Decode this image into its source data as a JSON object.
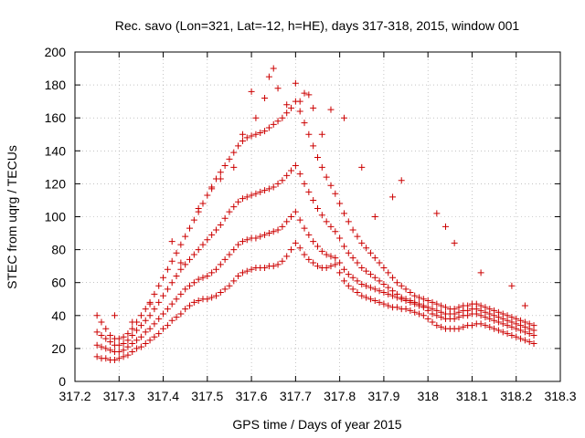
{
  "chart_data": {
    "type": "scatter",
    "title": "Rec. savo (Lon=321, Lat=-12, h=HE), days 317-318, 2015, window 001",
    "xlabel": "GPS time / Days of year 2015",
    "ylabel": "STEC from uqrg / TECUs",
    "xlim": [
      317.2,
      318.3
    ],
    "ylim": [
      0,
      200
    ],
    "xticks": [
      "317.2",
      "317.3",
      "317.4",
      "317.5",
      "317.6",
      "317.7",
      "317.8",
      "317.9",
      "318",
      "318.1",
      "318.2",
      "318.3"
    ],
    "yticks": [
      "0",
      "20",
      "40",
      "60",
      "80",
      "100",
      "120",
      "140",
      "160",
      "180",
      "200"
    ],
    "grid": true,
    "marker": "plus",
    "color": "#cc0000",
    "series": [
      {
        "x": [
          317.25,
          317.26,
          317.27,
          317.28,
          317.29,
          317.3,
          317.31,
          317.32,
          317.33,
          317.34,
          317.35,
          317.36,
          317.37,
          317.38,
          317.39,
          317.4,
          317.41,
          317.42,
          317.43,
          317.44,
          317.45,
          317.46,
          317.47,
          317.48,
          317.49,
          317.5,
          317.51,
          317.52,
          317.53,
          317.54,
          317.55,
          317.56,
          317.57,
          317.58,
          317.59,
          317.6,
          317.61,
          317.62,
          317.63,
          317.64,
          317.65,
          317.66,
          317.67,
          317.68,
          317.69,
          317.7,
          317.71,
          317.72,
          317.73,
          317.74,
          317.75,
          317.76,
          317.77,
          317.78,
          317.79,
          317.8,
          317.81,
          317.82,
          317.83,
          317.84,
          317.85,
          317.86,
          317.87,
          317.88,
          317.89,
          317.9,
          317.91,
          317.92,
          317.93,
          317.94,
          317.95,
          317.96,
          317.97,
          317.98,
          317.99,
          318.0,
          318.01,
          318.02,
          318.03,
          318.04,
          318.05,
          318.06,
          318.07,
          318.08,
          318.09,
          318.1,
          318.11,
          318.12,
          318.13,
          318.14,
          318.15,
          318.16,
          318.17,
          318.18,
          318.19,
          318.2,
          318.21,
          318.22,
          318.23,
          318.24
        ],
        "y": [
          15,
          14,
          14,
          13,
          13,
          14,
          15,
          16,
          18,
          20,
          21,
          23,
          25,
          27,
          29,
          32,
          34,
          37,
          39,
          41,
          44,
          46,
          48,
          49,
          50,
          50,
          51,
          52,
          54,
          56,
          58,
          61,
          64,
          66,
          67,
          68,
          69,
          69,
          69,
          70,
          70,
          71,
          73,
          76,
          80,
          84,
          81,
          77,
          74,
          72,
          70,
          69,
          69,
          70,
          71,
          66,
          61,
          58,
          56,
          54,
          52,
          51,
          50,
          49,
          48,
          47,
          46,
          45,
          45,
          44,
          44,
          43,
          42,
          41,
          40,
          38,
          36,
          34,
          33,
          32,
          32,
          32,
          32,
          33,
          34,
          34,
          35,
          35,
          34,
          33,
          32,
          31,
          30,
          29,
          28,
          27,
          26,
          25,
          24,
          23
        ]
      },
      {
        "x": [
          317.25,
          317.26,
          317.27,
          317.28,
          317.29,
          317.3,
          317.31,
          317.32,
          317.33,
          317.34,
          317.35,
          317.36,
          317.37,
          317.38,
          317.39,
          317.4,
          317.41,
          317.42,
          317.43,
          317.44,
          317.45,
          317.46,
          317.47,
          317.48,
          317.49,
          317.5,
          317.51,
          317.52,
          317.53,
          317.54,
          317.55,
          317.56,
          317.57,
          317.58,
          317.59,
          317.6,
          317.61,
          317.62,
          317.63,
          317.64,
          317.65,
          317.66,
          317.67,
          317.68,
          317.69,
          317.7,
          317.71,
          317.72,
          317.73,
          317.74,
          317.75,
          317.76,
          317.77,
          317.78,
          317.79,
          317.8,
          317.81,
          317.82,
          317.83,
          317.84,
          317.85,
          317.86,
          317.87,
          317.88,
          317.89,
          317.9,
          317.91,
          317.92,
          317.93,
          317.94,
          317.95,
          317.96,
          317.97,
          317.98,
          317.99,
          318.0,
          318.01,
          318.02,
          318.03,
          318.04,
          318.05,
          318.06,
          318.07,
          318.08,
          318.09,
          318.1,
          318.11,
          318.12,
          318.13,
          318.14,
          318.15,
          318.16,
          318.17,
          318.18,
          318.19,
          318.2,
          318.21,
          318.22,
          318.23,
          318.24
        ],
        "y": [
          22,
          21,
          20,
          19,
          18,
          18,
          19,
          21,
          23,
          25,
          27,
          30,
          32,
          35,
          38,
          41,
          44,
          47,
          50,
          53,
          56,
          58,
          60,
          62,
          63,
          64,
          66,
          68,
          71,
          74,
          77,
          80,
          83,
          85,
          86,
          87,
          87,
          88,
          89,
          90,
          91,
          92,
          94,
          97,
          100,
          103,
          98,
          93,
          89,
          85,
          82,
          79,
          77,
          76,
          75,
          72,
          68,
          65,
          63,
          61,
          59,
          58,
          57,
          56,
          55,
          54,
          53,
          52,
          51,
          50,
          49,
          48,
          47,
          46,
          45,
          43,
          41,
          40,
          39,
          38,
          38,
          38,
          39,
          40,
          40,
          41,
          41,
          40,
          39,
          38,
          37,
          36,
          35,
          34,
          33,
          32,
          31,
          30,
          29,
          28
        ]
      },
      {
        "x": [
          317.25,
          317.26,
          317.27,
          317.28,
          317.29,
          317.3,
          317.31,
          317.32,
          317.33,
          317.34,
          317.35,
          317.36,
          317.37,
          317.38,
          317.39,
          317.4,
          317.41,
          317.42,
          317.43,
          317.44,
          317.45,
          317.46,
          317.47,
          317.48,
          317.49,
          317.5,
          317.51,
          317.52,
          317.53,
          317.54,
          317.55,
          317.56,
          317.57,
          317.58,
          317.59,
          317.6,
          317.61,
          317.62,
          317.63,
          317.64,
          317.65,
          317.66,
          317.67,
          317.68,
          317.69,
          317.7,
          317.71,
          317.72,
          317.73,
          317.74,
          317.75,
          317.76,
          317.77,
          317.78,
          317.79,
          317.8,
          317.81,
          317.82,
          317.83,
          317.84,
          317.85,
          317.86,
          317.87,
          317.88,
          317.89,
          317.9,
          317.91,
          317.92,
          317.93,
          317.94,
          317.95,
          317.96,
          317.97,
          317.98,
          317.99,
          318.0,
          318.01,
          318.02,
          318.03,
          318.04,
          318.05,
          318.06,
          318.07,
          318.08,
          318.09,
          318.1,
          318.11,
          318.12,
          318.13,
          318.14,
          318.15,
          318.16,
          318.17,
          318.18,
          318.19,
          318.2,
          318.21,
          318.22,
          318.23,
          318.24
        ],
        "y": [
          30,
          28,
          26,
          24,
          22,
          22,
          23,
          25,
          28,
          31,
          34,
          37,
          40,
          44,
          48,
          52,
          56,
          60,
          64,
          68,
          71,
          74,
          77,
          80,
          83,
          86,
          89,
          92,
          95,
          99,
          103,
          106,
          109,
          111,
          112,
          113,
          114,
          115,
          116,
          117,
          118,
          120,
          122,
          125,
          128,
          131,
          126,
          120,
          115,
          110,
          105,
          101,
          97,
          94,
          91,
          87,
          82,
          78,
          75,
          72,
          69,
          67,
          65,
          63,
          61,
          59,
          57,
          55,
          53,
          51,
          50,
          49,
          48,
          47,
          46,
          45,
          44,
          43,
          42,
          41,
          41,
          41,
          42,
          43,
          43,
          44,
          44,
          43,
          42,
          41,
          40,
          39,
          38,
          37,
          36,
          35,
          34,
          33,
          32,
          31
        ]
      },
      {
        "x": [
          317.25,
          317.26,
          317.27,
          317.28,
          317.29,
          317.3,
          317.31,
          317.32,
          317.33,
          317.34,
          317.35,
          317.36,
          317.37,
          317.38,
          317.39,
          317.4,
          317.41,
          317.42,
          317.43,
          317.44,
          317.45,
          317.46,
          317.47,
          317.48,
          317.49,
          317.5,
          317.51,
          317.52,
          317.53,
          317.54,
          317.55,
          317.56,
          317.57,
          317.58,
          317.59,
          317.6,
          317.61,
          317.62,
          317.63,
          317.64,
          317.65,
          317.66,
          317.67,
          317.68,
          317.69,
          317.7,
          317.71,
          317.72,
          317.73,
          317.74,
          317.75,
          317.76,
          317.77,
          317.78,
          317.79,
          317.8,
          317.81,
          317.82,
          317.83,
          317.84,
          317.85,
          317.86,
          317.87,
          317.88,
          317.89,
          317.9,
          317.91,
          317.92,
          317.93,
          317.94,
          317.95,
          317.96,
          317.97,
          317.98,
          317.99,
          318.0,
          318.01,
          318.02,
          318.03,
          318.04,
          318.05,
          318.06,
          318.07,
          318.08,
          318.09,
          318.1,
          318.11,
          318.12,
          318.13,
          318.14,
          318.15,
          318.16,
          318.17,
          318.18,
          318.19,
          318.2,
          318.21,
          318.22,
          318.23,
          318.24
        ],
        "y": [
          40,
          36,
          32,
          28,
          26,
          26,
          27,
          29,
          32,
          36,
          40,
          44,
          48,
          53,
          58,
          63,
          68,
          73,
          78,
          83,
          88,
          93,
          98,
          103,
          108,
          113,
          118,
          123,
          127,
          131,
          135,
          139,
          143,
          146,
          148,
          149,
          150,
          151,
          152,
          154,
          156,
          158,
          160,
          163,
          166,
          170,
          164,
          157,
          150,
          143,
          136,
          130,
          124,
          119,
          114,
          108,
          102,
          97,
          92,
          88,
          84,
          81,
          78,
          75,
          72,
          69,
          66,
          63,
          60,
          58,
          56,
          54,
          52,
          51,
          50,
          49,
          48,
          47,
          46,
          45,
          44,
          44,
          45,
          46,
          46,
          47,
          47,
          46,
          45,
          44,
          43,
          42,
          41,
          40,
          39,
          38,
          37,
          36,
          35,
          34
        ]
      },
      {
        "x": [
          317.29,
          317.33,
          317.37,
          317.42,
          317.44,
          317.48,
          317.51,
          317.53,
          317.56,
          317.58,
          317.6,
          317.61,
          317.63,
          317.64,
          317.65,
          317.66,
          317.68,
          317.7,
          317.71,
          317.72,
          317.73,
          317.74,
          317.76,
          317.78,
          317.81,
          317.85,
          317.88,
          317.92,
          317.94,
          318.02,
          318.04,
          318.06,
          318.12,
          318.19,
          318.22
        ],
        "y": [
          40,
          36,
          47,
          85,
          72,
          105,
          117,
          123,
          130,
          150,
          176,
          160,
          172,
          185,
          190,
          178,
          168,
          181,
          170,
          175,
          174,
          166,
          150,
          165,
          160,
          130,
          100,
          112,
          122,
          102,
          94,
          84,
          66,
          58,
          46
        ]
      }
    ]
  }
}
